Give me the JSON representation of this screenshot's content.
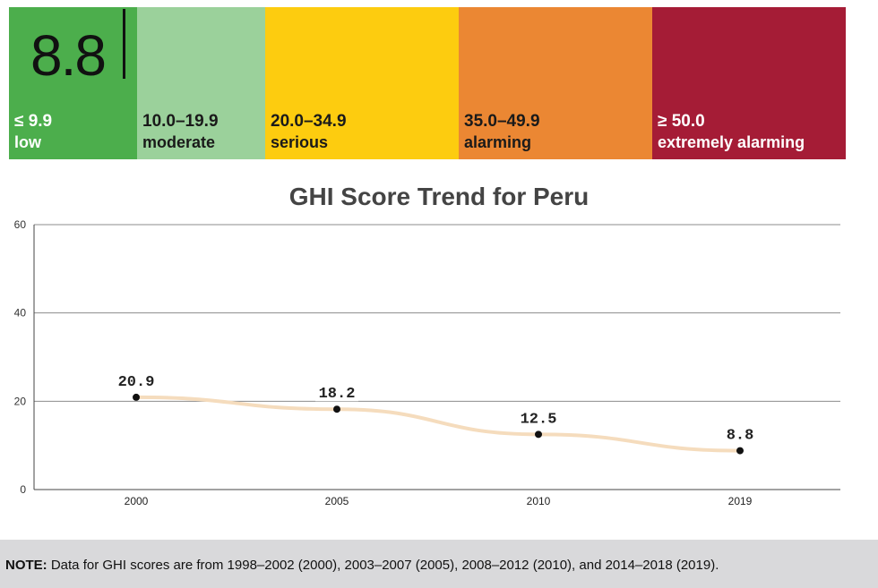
{
  "score_scale": {
    "current_score": "8.8",
    "bands": [
      {
        "range": "≤ 9.9",
        "label": "low",
        "color": "#4cae4c",
        "text_color": "#ffffff"
      },
      {
        "range": "10.0–19.9",
        "label": "moderate",
        "color": "#9bd19b",
        "text_color": "#1a1a1a"
      },
      {
        "range": "20.0–34.9",
        "label": "serious",
        "color": "#fdcc0f",
        "text_color": "#1a1a1a"
      },
      {
        "range": "35.0–49.9",
        "label": "alarming",
        "color": "#eb8733",
        "text_color": "#1a1a1a"
      },
      {
        "range": "≥ 50.0",
        "label": "extremely alarming",
        "color": "#a51c36",
        "text_color": "#ffffff"
      }
    ]
  },
  "chart_data": {
    "type": "line",
    "title": "GHI Score Trend for Peru",
    "xlabel": "",
    "ylabel": "",
    "categories": [
      "2000",
      "2005",
      "2010",
      "2019"
    ],
    "series": [
      {
        "values": [
          20.9,
          18.2,
          12.5,
          8.8
        ],
        "labels": [
          "20.9",
          "18.2",
          "12.5",
          "8.8"
        ],
        "color": "#f5dcbd"
      }
    ],
    "ylim": [
      0,
      60
    ],
    "yticks": [
      0,
      20,
      40,
      60
    ],
    "grid": true
  },
  "note": {
    "label": "NOTE:",
    "text": " Data for GHI scores are from 1998–2002 (2000), 2003–2007 (2005), 2008–2012 (2010), and 2014–2018 (2019)."
  }
}
